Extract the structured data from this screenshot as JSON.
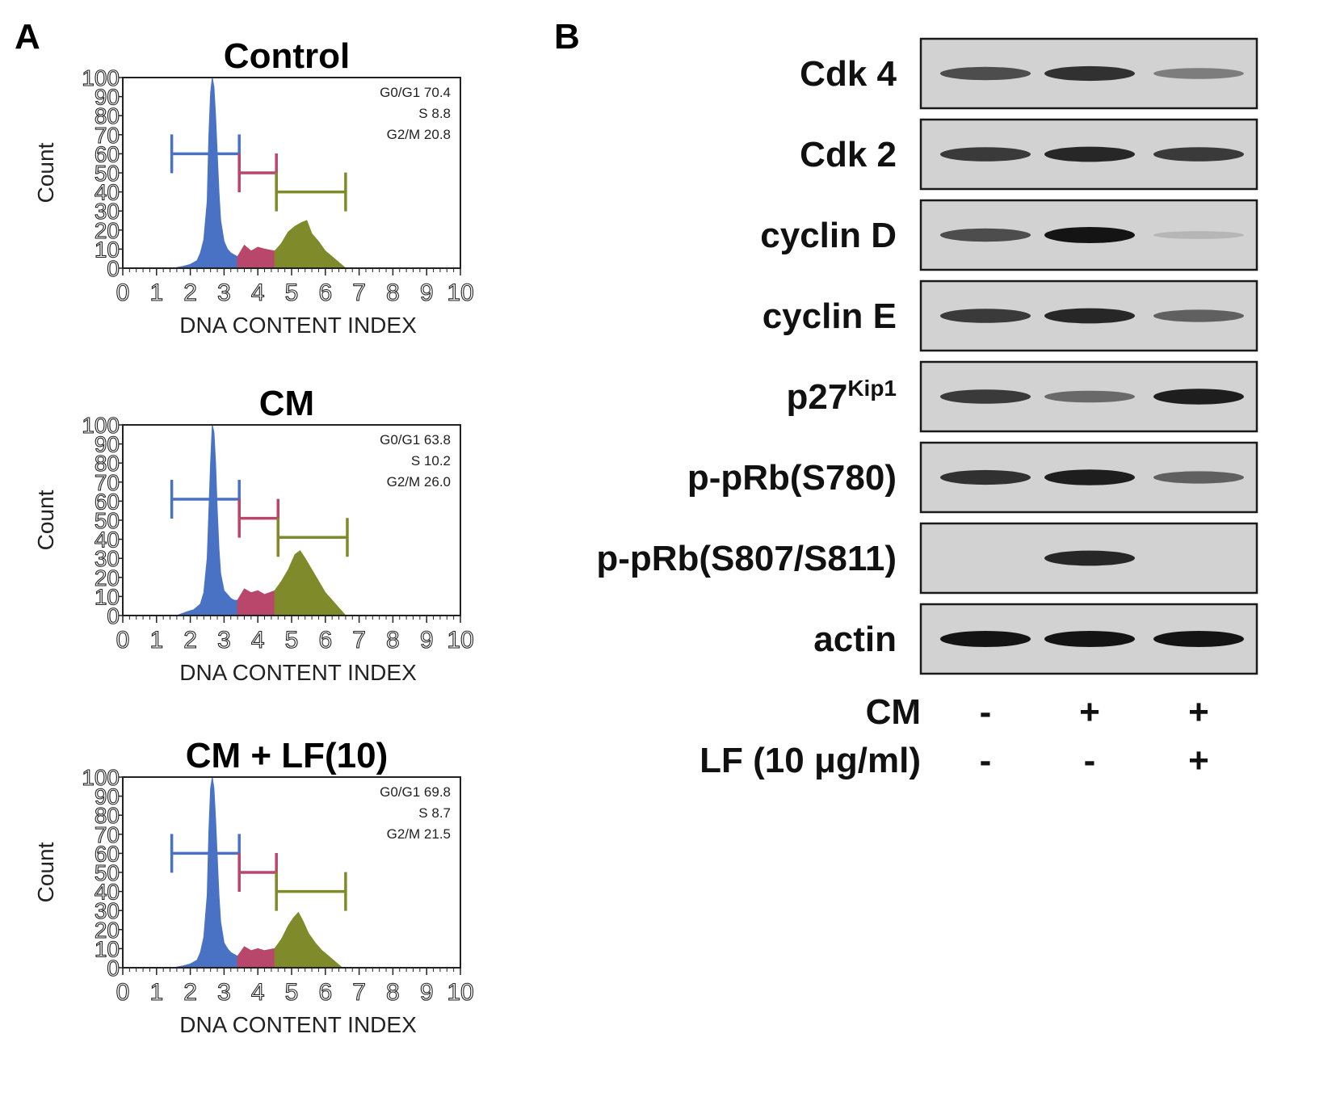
{
  "panels": {
    "a_label": "A",
    "b_label": "B"
  },
  "chart_data": [
    {
      "type": "area",
      "title": "Control",
      "xlabel": "DNA CONTENT INDEX",
      "ylabel": "Count",
      "xlim": [
        0,
        10
      ],
      "ylim": [
        0,
        100
      ],
      "xticks": [
        "0",
        "1",
        "2",
        "3",
        "4",
        "5",
        "6",
        "7",
        "8",
        "9",
        "10"
      ],
      "yticks": [
        "0",
        "10",
        "20",
        "30",
        "40",
        "50",
        "60",
        "70",
        "80",
        "90",
        "100"
      ],
      "stats": [
        "G0/G1 70.4",
        "S 8.8",
        "G2/M 20.8"
      ],
      "series": [
        {
          "color": "#4a72c4",
          "x": [
            1.5,
            1.8,
            2.0,
            2.2,
            2.3,
            2.4,
            2.5,
            2.55,
            2.6,
            2.65,
            2.7,
            2.75,
            2.8,
            2.85,
            2.9,
            3.0,
            3.1,
            3.2,
            3.3,
            3.4
          ],
          "y": [
            0,
            1,
            2,
            4,
            8,
            15,
            35,
            70,
            92,
            100,
            95,
            80,
            60,
            40,
            25,
            14,
            10,
            8,
            7,
            6
          ]
        },
        {
          "color": "#b9476b",
          "x": [
            3.4,
            3.6,
            3.8,
            4.0,
            4.2,
            4.5
          ],
          "y": [
            6,
            12,
            9,
            11,
            10,
            9
          ]
        },
        {
          "color": "#7f8a2a",
          "x": [
            4.5,
            4.7,
            4.9,
            5.1,
            5.3,
            5.45,
            5.6,
            5.8,
            6.0,
            6.2,
            6.4,
            6.6
          ],
          "y": [
            9,
            13,
            19,
            22,
            24,
            25,
            18,
            14,
            9,
            6,
            3,
            0
          ]
        }
      ],
      "gates": [
        {
          "color": "#4a72c4",
          "x0": 1.45,
          "x1": 3.45,
          "y": 60
        },
        {
          "color": "#b9476b",
          "x0": 3.45,
          "x1": 4.55,
          "y": 50
        },
        {
          "color": "#7f8a2a",
          "x0": 4.55,
          "x1": 6.6,
          "y": 40
        }
      ]
    },
    {
      "type": "area",
      "title": "CM",
      "xlabel": "DNA CONTENT INDEX",
      "ylabel": "Count",
      "xlim": [
        0,
        10
      ],
      "ylim": [
        0,
        100
      ],
      "xticks": [
        "0",
        "1",
        "2",
        "3",
        "4",
        "5",
        "6",
        "7",
        "8",
        "9",
        "10"
      ],
      "yticks": [
        "0",
        "10",
        "20",
        "30",
        "40",
        "50",
        "60",
        "70",
        "80",
        "90",
        "100"
      ],
      "stats": [
        "G0/G1 63.8",
        "S 10.2",
        "G2/M 26.0"
      ],
      "series": [
        {
          "color": "#4a72c4",
          "x": [
            1.6,
            1.9,
            2.1,
            2.3,
            2.4,
            2.5,
            2.6,
            2.65,
            2.7,
            2.75,
            2.8,
            2.85,
            2.9,
            3.0,
            3.1,
            3.2,
            3.3,
            3.4
          ],
          "y": [
            0,
            2,
            3,
            6,
            12,
            30,
            80,
            100,
            96,
            80,
            55,
            35,
            22,
            13,
            11,
            9,
            8,
            8
          ]
        },
        {
          "color": "#b9476b",
          "x": [
            3.4,
            3.6,
            3.8,
            4.0,
            4.2,
            4.5
          ],
          "y": [
            8,
            14,
            12,
            13,
            11,
            13
          ]
        },
        {
          "color": "#7f8a2a",
          "x": [
            4.5,
            4.7,
            4.9,
            5.1,
            5.25,
            5.4,
            5.6,
            5.8,
            6.0,
            6.2,
            6.4,
            6.6
          ],
          "y": [
            13,
            18,
            24,
            32,
            34,
            30,
            24,
            18,
            12,
            8,
            4,
            0
          ]
        }
      ],
      "gates": [
        {
          "color": "#4a72c4",
          "x0": 1.45,
          "x1": 3.45,
          "y": 61
        },
        {
          "color": "#b9476b",
          "x0": 3.45,
          "x1": 4.6,
          "y": 51
        },
        {
          "color": "#7f8a2a",
          "x0": 4.6,
          "x1": 6.65,
          "y": 41
        }
      ]
    },
    {
      "type": "area",
      "title": "CM + LF(10)",
      "xlabel": "DNA CONTENT INDEX",
      "ylabel": "Count",
      "xlim": [
        0,
        10
      ],
      "ylim": [
        0,
        100
      ],
      "xticks": [
        "0",
        "1",
        "2",
        "3",
        "4",
        "5",
        "6",
        "7",
        "8",
        "9",
        "10"
      ],
      "yticks": [
        "0",
        "10",
        "20",
        "30",
        "40",
        "50",
        "60",
        "70",
        "80",
        "90",
        "100"
      ],
      "stats": [
        "G0/G1 69.8",
        "S 8.7",
        "G2/M 21.5"
      ],
      "series": [
        {
          "color": "#4a72c4",
          "x": [
            1.5,
            1.8,
            2.0,
            2.2,
            2.3,
            2.4,
            2.5,
            2.55,
            2.6,
            2.65,
            2.7,
            2.75,
            2.8,
            2.85,
            2.9,
            3.0,
            3.1,
            3.2,
            3.3,
            3.4
          ],
          "y": [
            0,
            1,
            2,
            4,
            8,
            16,
            38,
            72,
            94,
            100,
            94,
            78,
            58,
            38,
            24,
            13,
            10,
            8,
            7,
            6
          ]
        },
        {
          "color": "#b9476b",
          "x": [
            3.4,
            3.6,
            3.8,
            4.0,
            4.2,
            4.5
          ],
          "y": [
            6,
            11,
            9,
            10,
            9,
            10
          ]
        },
        {
          "color": "#7f8a2a",
          "x": [
            4.5,
            4.7,
            4.9,
            5.05,
            5.2,
            5.35,
            5.5,
            5.7,
            5.9,
            6.1,
            6.3,
            6.5
          ],
          "y": [
            10,
            15,
            22,
            26,
            29,
            24,
            18,
            13,
            9,
            6,
            3,
            0
          ]
        }
      ],
      "gates": [
        {
          "color": "#4a72c4",
          "x0": 1.45,
          "x1": 3.45,
          "y": 60
        },
        {
          "color": "#b9476b",
          "x0": 3.45,
          "x1": 4.55,
          "y": 50
        },
        {
          "color": "#7f8a2a",
          "x0": 4.55,
          "x1": 6.6,
          "y": 40
        }
      ]
    },
    {
      "type": "table",
      "rows": [
        {
          "label": "Cdk 4",
          "bands": [
            0.7,
            0.85,
            0.45
          ]
        },
        {
          "label": "Cdk 2",
          "bands": [
            0.8,
            0.9,
            0.8
          ]
        },
        {
          "label": "cyclin D",
          "bands": [
            0.7,
            1.0,
            0.15
          ]
        },
        {
          "label": "cyclin E",
          "bands": [
            0.8,
            0.9,
            0.6
          ]
        },
        {
          "label": "p27",
          "sup": "Kip1",
          "bands": [
            0.8,
            0.55,
            0.95
          ]
        },
        {
          "label": "p-pRb(S780)",
          "bands": [
            0.85,
            0.95,
            0.6
          ]
        },
        {
          "label": "p-pRb(S807/S811)",
          "bands": [
            0.0,
            0.9,
            0.0
          ]
        },
        {
          "label": "actin",
          "bands": [
            1.0,
            1.0,
            1.0
          ]
        }
      ],
      "treatments": [
        {
          "label": "CM",
          "values": [
            "-",
            "+",
            "+"
          ]
        },
        {
          "label": "LF (10 μg/ml)",
          "values": [
            "-",
            "-",
            "+"
          ]
        }
      ]
    }
  ]
}
